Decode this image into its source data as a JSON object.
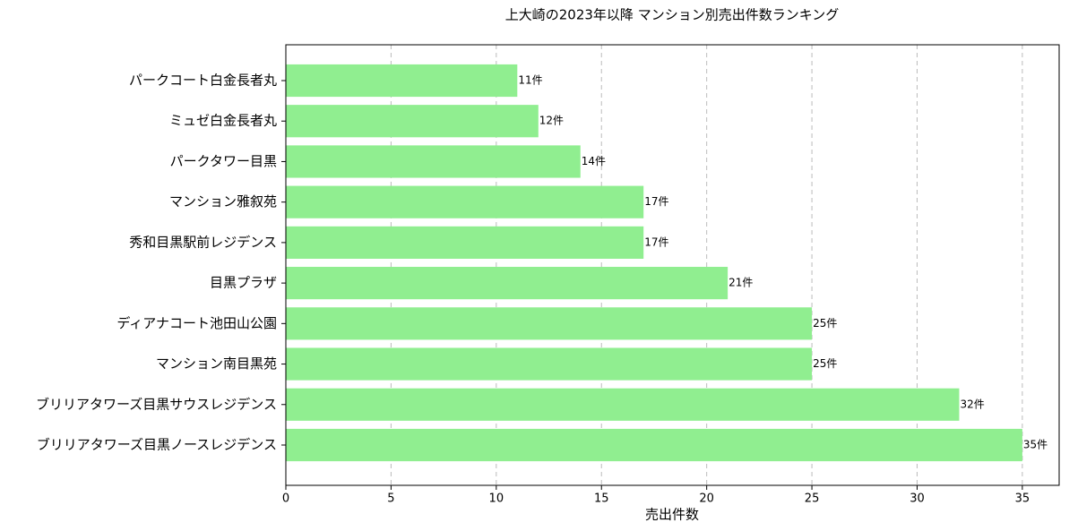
{
  "chart_data": {
    "type": "barh",
    "title": "上大崎の2023年以降 マンション別売出件数ランキング",
    "xlabel": "売出件数",
    "categories": [
      "パークコート白金長者丸",
      "ミュゼ白金長者丸",
      "パークタワー目黒",
      "マンション雅叙苑",
      "秀和目黒駅前レジデンス",
      "目黒プラザ",
      "ディアナコート池田山公園",
      "マンション南目黒苑",
      "ブリリアタワーズ目黒サウスレジデンス",
      "ブリリアタワーズ目黒ノースレジデンス"
    ],
    "values": [
      11,
      12,
      14,
      17,
      17,
      21,
      25,
      25,
      32,
      35
    ],
    "value_labels": [
      "11件",
      "12件",
      "14件",
      "17件",
      "17件",
      "21件",
      "25件",
      "25件",
      "32件",
      "35件"
    ],
    "color": "#90ee90",
    "xlim": [
      0,
      36.75
    ],
    "xticks": [
      0,
      5,
      10,
      15,
      20,
      25,
      30,
      35
    ],
    "grid": true
  }
}
